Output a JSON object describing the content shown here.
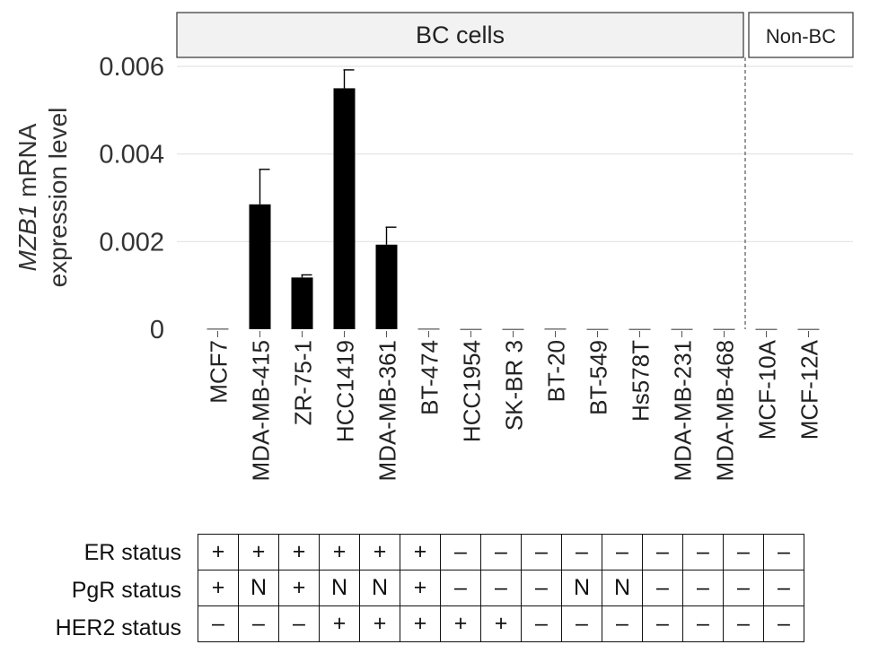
{
  "chart_data": {
    "type": "bar",
    "ylabel_italic": "MZB1",
    "ylabel_rest": " mRNA",
    "ylabel_line2": "expression level",
    "ylim": [
      0,
      0.006
    ],
    "yticks": [
      "0",
      "0.002",
      "0.004",
      "0.006"
    ],
    "ytick_values": [
      0,
      0.002,
      0.004,
      0.006
    ],
    "grid": true,
    "categories": [
      "MCF7",
      "MDA-MB-415",
      "ZR-75-1",
      "HCC1419",
      "MDA-MB-361",
      "BT-474",
      "HCC1954",
      "SK-BR 3",
      "BT-20",
      "BT-549",
      "Hs578T",
      "MDA-MB-231",
      "MDA-MB-468",
      "MCF-10A",
      "MCF-12A"
    ],
    "values": [
      1e-05,
      0.00285,
      0.00118,
      0.0055,
      0.00193,
      1e-05,
      5e-06,
      5e-06,
      1e-05,
      5e-06,
      5e-06,
      5e-06,
      5e-06,
      5e-06,
      5e-06
    ],
    "errors": [
      0,
      0.0008,
      6e-05,
      0.00042,
      0.0004,
      0,
      0,
      0,
      0,
      0,
      0,
      0,
      0,
      0,
      0
    ],
    "bar_color": "#000000",
    "groups": [
      {
        "label": "BC cells",
        "count": 13
      },
      {
        "label": "Non-BC",
        "count": 2
      }
    ]
  },
  "status_table": {
    "rows": [
      {
        "label": "ER status",
        "values": [
          "+",
          "+",
          "+",
          "+",
          "+",
          "+",
          "–",
          "–",
          "–",
          "–",
          "–",
          "–",
          "–",
          "–",
          "–"
        ]
      },
      {
        "label": "PgR status",
        "values": [
          "+",
          "N",
          "+",
          "N",
          "N",
          "+",
          "–",
          "–",
          "–",
          "N",
          "N",
          "–",
          "–",
          "–",
          "–"
        ]
      },
      {
        "label": "HER2 status",
        "values": [
          "–",
          "–",
          "–",
          "+",
          "+",
          "+",
          "+",
          "+",
          "–",
          "–",
          "–",
          "–",
          "–",
          "–",
          "–"
        ]
      }
    ]
  }
}
